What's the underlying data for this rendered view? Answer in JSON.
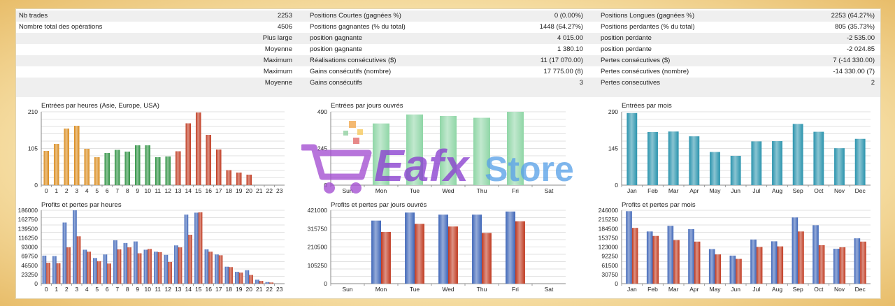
{
  "stats": {
    "rows": [
      [
        "Nb trades",
        "2253",
        "Positions Courtes (gagnées %)",
        "0 (0.00%)",
        "Positions Longues (gagnées %)",
        "2253 (64.27%)"
      ],
      [
        "Nombre total des opérations",
        "4506",
        "Positions gagnantes (% du total)",
        "1448 (64.27%)",
        "Positions perdantes (% du total)",
        "805 (35.73%)"
      ],
      [
        "",
        "Plus large",
        "position gagnante",
        "4 015.00",
        "position perdante",
        "-2 535.00"
      ],
      [
        "",
        "Moyenne",
        "position gagnante",
        "1 380.10",
        "position perdante",
        "-2 024.85"
      ],
      [
        "",
        "Maximum",
        "Réalisations consécutives ($)",
        "11 (17 070.00)",
        "Pertes consécutives ($)",
        "7 (-14 330.00)"
      ],
      [
        "",
        "Maximum",
        "Gains consécutifs (nombre)",
        "17 775.00 (8)",
        "Pertes consécutives (nombre)",
        "-14 330.00 (7)"
      ],
      [
        "",
        "Moyenne",
        "Gains consécutifs",
        "3",
        "Pertes consecutives",
        "2"
      ]
    ]
  },
  "watermark": {
    "brand": "Eafx",
    "suffix": "Store"
  },
  "colors": {
    "orange": "#d98a1c",
    "green": "#2e9142",
    "red": "#c0391f",
    "lightgreen": "#8fd6a6",
    "teal": "#2a93ad",
    "blue": "#3f66b8",
    "lossred": "#c0391f",
    "grid": "#c6c6c6"
  },
  "chart_data": [
    {
      "type": "bar",
      "title": "Entrées par heures (Asie, Europe, USA)",
      "categories": [
        "0",
        "1",
        "2",
        "3",
        "4",
        "5",
        "6",
        "7",
        "8",
        "9",
        "10",
        "11",
        "12",
        "13",
        "14",
        "15",
        "16",
        "17",
        "18",
        "19",
        "20",
        "21",
        "22",
        "23"
      ],
      "yticks": [
        "210",
        "105",
        "0"
      ],
      "ylim": [
        0,
        210
      ],
      "values": [
        98,
        118,
        162,
        170,
        104,
        80,
        92,
        101,
        96,
        114,
        114,
        80,
        82,
        97,
        177,
        208,
        144,
        102,
        43,
        36,
        30,
        0,
        0,
        0
      ],
      "bar_colors": [
        "orange",
        "orange",
        "orange",
        "orange",
        "orange",
        "orange",
        "green",
        "green",
        "green",
        "green",
        "green",
        "green",
        "green",
        "red",
        "red",
        "red",
        "red",
        "red",
        "red",
        "red",
        "red",
        "red",
        "red",
        "red"
      ]
    },
    {
      "type": "bar",
      "title": "Entrées par jours ouvrés",
      "categories": [
        "Sun",
        "Mon",
        "Tue",
        "Wed",
        "Thu",
        "Fri",
        "Sat"
      ],
      "yticks": [
        "490",
        "245",
        "0"
      ],
      "ylim": [
        0,
        490
      ],
      "values": [
        0,
        412,
        472,
        462,
        450,
        490,
        0
      ],
      "bar_colors": [
        "lightgreen",
        "lightgreen",
        "lightgreen",
        "lightgreen",
        "lightgreen",
        "lightgreen",
        "lightgreen"
      ]
    },
    {
      "type": "bar",
      "title": "Entrées par mois",
      "categories": [
        "Jan",
        "Feb",
        "Mar",
        "Apr",
        "May",
        "Jun",
        "Jul",
        "Aug",
        "Sep",
        "Oct",
        "Nov",
        "Dec"
      ],
      "yticks": [
        "290",
        "145",
        "0"
      ],
      "ylim": [
        0,
        290
      ],
      "values": [
        285,
        210,
        212,
        193,
        131,
        116,
        173,
        174,
        242,
        211,
        146,
        183
      ],
      "bar_colors": [
        "teal",
        "teal",
        "teal",
        "teal",
        "teal",
        "teal",
        "teal",
        "teal",
        "teal",
        "teal",
        "teal",
        "teal"
      ]
    },
    {
      "type": "bar",
      "title": "Profits et pertes par heures",
      "categories": [
        "0",
        "1",
        "2",
        "3",
        "4",
        "5",
        "6",
        "7",
        "8",
        "9",
        "10",
        "11",
        "12",
        "13",
        "14",
        "15",
        "16",
        "17",
        "18",
        "19",
        "20",
        "21",
        "22",
        "23"
      ],
      "yticks": [
        "186000",
        "162750",
        "139500",
        "116250",
        "93000",
        "69750",
        "46500",
        "23250",
        "0"
      ],
      "ylim": [
        0,
        186000
      ],
      "series": [
        {
          "name": "Profits",
          "color": "blue",
          "values": [
            71000,
            70000,
            155000,
            186000,
            86000,
            65000,
            74000,
            110000,
            103000,
            107000,
            86000,
            81000,
            73000,
            97000,
            175000,
            180000,
            87000,
            74000,
            43000,
            30000,
            34000,
            10000,
            4000,
            0
          ]
        },
        {
          "name": "Pertes",
          "color": "lossred",
          "values": [
            53000,
            52000,
            92000,
            120000,
            81000,
            57000,
            51000,
            87000,
            92000,
            77000,
            88000,
            80000,
            55000,
            92000,
            124000,
            181000,
            81000,
            72000,
            42000,
            28000,
            22000,
            7000,
            3000,
            0
          ]
        }
      ]
    },
    {
      "type": "bar",
      "title": "Profits et pertes par jours ouvrés",
      "categories": [
        "Sun",
        "Mon",
        "Tue",
        "Wed",
        "Thu",
        "Fri",
        "Sat"
      ],
      "yticks": [
        "421000",
        "315750",
        "210500",
        "105250",
        "0"
      ],
      "ylim": [
        0,
        421000
      ],
      "series": [
        {
          "name": "Profits",
          "color": "blue",
          "values": [
            0,
            362000,
            408000,
            396000,
            396000,
            414000,
            0
          ]
        },
        {
          "name": "Pertes",
          "color": "lossred",
          "values": [
            0,
            297000,
            343000,
            328000,
            291000,
            358000,
            0
          ]
        }
      ]
    },
    {
      "type": "bar",
      "title": "Profits et pertes par mois",
      "categories": [
        "Jan",
        "Feb",
        "Mar",
        "Apr",
        "May",
        "Jun",
        "Jul",
        "Aug",
        "Sep",
        "Oct",
        "Nov",
        "Dec"
      ],
      "yticks": [
        "246000",
        "215250",
        "184500",
        "153750",
        "123000",
        "92250",
        "61500",
        "30750",
        "0"
      ],
      "ylim": [
        0,
        246000
      ],
      "series": [
        {
          "name": "Profits",
          "color": "blue",
          "values": [
            243000,
            175000,
            194000,
            183000,
            116000,
            94000,
            148000,
            142000,
            222000,
            196000,
            117000,
            152000
          ]
        },
        {
          "name": "Pertes",
          "color": "lossred",
          "values": [
            187000,
            160000,
            146000,
            141000,
            98000,
            83000,
            123000,
            125000,
            175000,
            129000,
            122000,
            141000
          ]
        }
      ]
    }
  ]
}
